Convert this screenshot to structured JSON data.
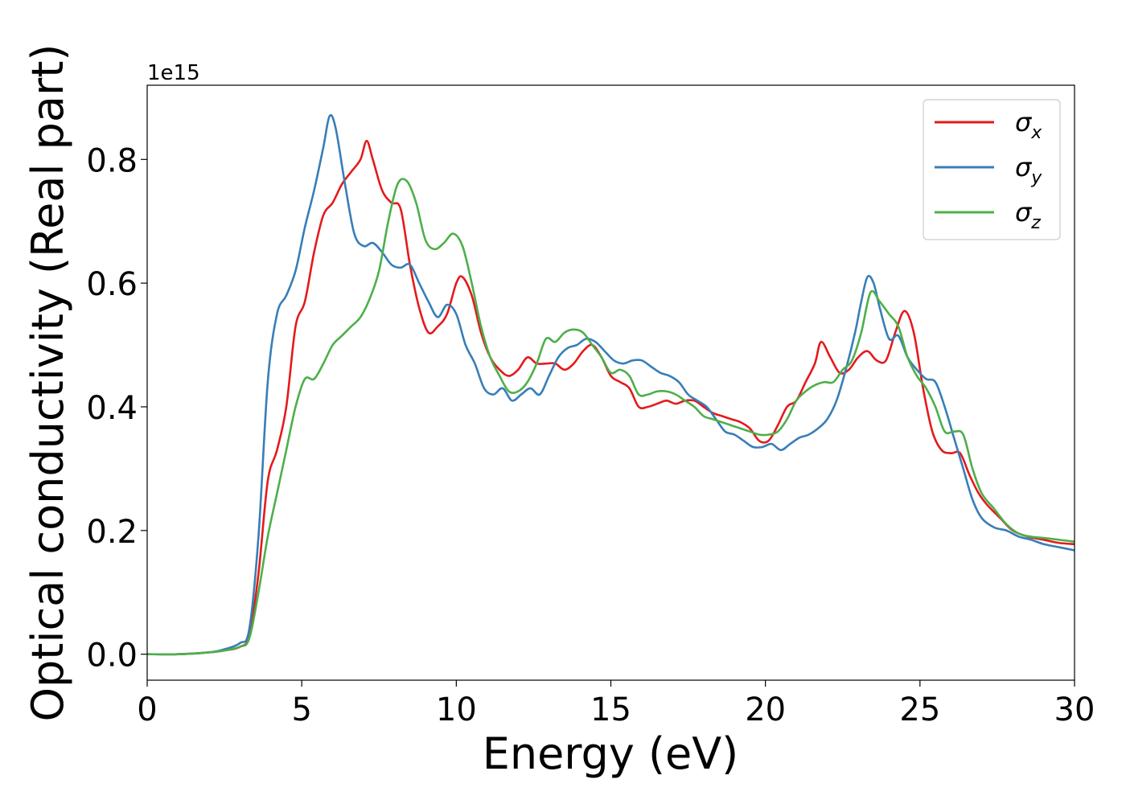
{
  "chart_data": {
    "type": "line",
    "xlabel": "Energy (eV)",
    "ylabel": "Optical conductivity (Real part)",
    "y_offset_label": "1e15",
    "xlim": [
      0,
      30
    ],
    "ylim": [
      -0.042,
      0.92
    ],
    "x_ticks": [
      0,
      5,
      10,
      15,
      20,
      25,
      30
    ],
    "x_tick_labels": [
      "0",
      "5",
      "10",
      "15",
      "20",
      "25",
      "30"
    ],
    "y_ticks": [
      0.0,
      0.2,
      0.4,
      0.6,
      0.8
    ],
    "y_tick_labels": [
      "0.0",
      "0.2",
      "0.4",
      "0.6",
      "0.8"
    ],
    "grid": false,
    "legend_position": "top-right",
    "series": [
      {
        "name": "σx",
        "symbol": "σ",
        "subscript": "x",
        "color": "#e41a1c",
        "x": [
          0,
          1,
          2,
          2.5,
          3,
          3.3,
          3.6,
          3.9,
          4.2,
          4.5,
          4.8,
          5.1,
          5.4,
          5.7,
          6.0,
          6.3,
          6.6,
          6.9,
          7.1,
          7.3,
          7.6,
          7.9,
          8.2,
          8.5,
          8.8,
          9.1,
          9.4,
          9.7,
          10.0,
          10.2,
          10.5,
          10.8,
          11.1,
          11.4,
          11.7,
          12.0,
          12.3,
          12.6,
          12.9,
          13.2,
          13.5,
          13.8,
          14.1,
          14.4,
          14.7,
          15.0,
          15.3,
          15.6,
          15.9,
          16.2,
          16.5,
          16.8,
          17.1,
          17.4,
          17.7,
          18.0,
          18.3,
          18.6,
          18.9,
          19.2,
          19.5,
          19.8,
          20.1,
          20.4,
          20.7,
          21.0,
          21.3,
          21.6,
          21.8,
          22.1,
          22.4,
          22.7,
          23.0,
          23.3,
          23.6,
          23.9,
          24.2,
          24.5,
          24.8,
          25.1,
          25.4,
          25.7,
          26.0,
          26.3,
          26.6,
          26.9,
          27.2,
          27.6,
          28.0,
          28.5,
          29.0,
          29.5,
          30.0
        ],
        "y": [
          0.0,
          0.0,
          0.003,
          0.006,
          0.012,
          0.03,
          0.13,
          0.28,
          0.33,
          0.4,
          0.53,
          0.57,
          0.65,
          0.71,
          0.73,
          0.76,
          0.78,
          0.8,
          0.83,
          0.8,
          0.75,
          0.73,
          0.72,
          0.63,
          0.56,
          0.52,
          0.53,
          0.55,
          0.6,
          0.61,
          0.58,
          0.52,
          0.48,
          0.46,
          0.45,
          0.46,
          0.48,
          0.47,
          0.47,
          0.47,
          0.46,
          0.47,
          0.49,
          0.5,
          0.48,
          0.45,
          0.44,
          0.43,
          0.4,
          0.4,
          0.405,
          0.41,
          0.405,
          0.41,
          0.41,
          0.4,
          0.39,
          0.385,
          0.38,
          0.375,
          0.365,
          0.345,
          0.345,
          0.37,
          0.4,
          0.41,
          0.44,
          0.47,
          0.505,
          0.48,
          0.455,
          0.46,
          0.48,
          0.49,
          0.475,
          0.475,
          0.52,
          0.555,
          0.52,
          0.43,
          0.36,
          0.33,
          0.325,
          0.325,
          0.29,
          0.26,
          0.24,
          0.22,
          0.2,
          0.19,
          0.185,
          0.18,
          0.178
        ]
      },
      {
        "name": "σy",
        "symbol": "σ",
        "subscript": "y",
        "color": "#377eb8",
        "x": [
          0,
          1,
          2,
          2.5,
          3,
          3.3,
          3.6,
          3.9,
          4.2,
          4.5,
          4.8,
          5.1,
          5.4,
          5.7,
          5.9,
          6.1,
          6.4,
          6.7,
          7.0,
          7.3,
          7.6,
          7.9,
          8.2,
          8.5,
          8.8,
          9.1,
          9.4,
          9.7,
          10.0,
          10.3,
          10.6,
          10.9,
          11.2,
          11.5,
          11.8,
          12.1,
          12.4,
          12.7,
          13.0,
          13.3,
          13.6,
          13.9,
          14.2,
          14.5,
          14.8,
          15.1,
          15.4,
          15.7,
          16.0,
          16.3,
          16.6,
          16.9,
          17.2,
          17.5,
          17.8,
          18.1,
          18.4,
          18.7,
          19.0,
          19.3,
          19.6,
          19.9,
          20.2,
          20.5,
          20.8,
          21.1,
          21.4,
          21.7,
          22.0,
          22.3,
          22.6,
          22.9,
          23.1,
          23.3,
          23.5,
          23.7,
          24.0,
          24.3,
          24.6,
          24.9,
          25.2,
          25.5,
          25.8,
          26.1,
          26.4,
          26.7,
          27.0,
          27.4,
          27.8,
          28.2,
          28.6,
          29.0,
          29.5,
          30.0
        ],
        "y": [
          0.0,
          0.0,
          0.003,
          0.008,
          0.018,
          0.04,
          0.19,
          0.44,
          0.55,
          0.58,
          0.62,
          0.69,
          0.75,
          0.82,
          0.87,
          0.85,
          0.76,
          0.68,
          0.66,
          0.665,
          0.65,
          0.63,
          0.625,
          0.63,
          0.6,
          0.57,
          0.545,
          0.565,
          0.55,
          0.5,
          0.47,
          0.43,
          0.42,
          0.43,
          0.41,
          0.42,
          0.43,
          0.42,
          0.45,
          0.48,
          0.495,
          0.5,
          0.51,
          0.505,
          0.49,
          0.475,
          0.47,
          0.475,
          0.475,
          0.465,
          0.455,
          0.45,
          0.44,
          0.42,
          0.41,
          0.4,
          0.38,
          0.36,
          0.355,
          0.345,
          0.335,
          0.335,
          0.34,
          0.33,
          0.34,
          0.35,
          0.355,
          0.365,
          0.38,
          0.41,
          0.46,
          0.52,
          0.57,
          0.61,
          0.6,
          0.56,
          0.51,
          0.515,
          0.48,
          0.46,
          0.445,
          0.44,
          0.4,
          0.35,
          0.3,
          0.25,
          0.22,
          0.205,
          0.2,
          0.19,
          0.185,
          0.178,
          0.173,
          0.168
        ]
      },
      {
        "name": "σz",
        "symbol": "σ",
        "subscript": "z",
        "color": "#4daf4a",
        "x": [
          0,
          1,
          2,
          2.5,
          3,
          3.3,
          3.6,
          3.9,
          4.2,
          4.5,
          4.8,
          5.1,
          5.4,
          5.7,
          6.0,
          6.3,
          6.6,
          6.9,
          7.2,
          7.5,
          7.8,
          8.1,
          8.4,
          8.7,
          9.0,
          9.3,
          9.6,
          9.9,
          10.2,
          10.5,
          10.8,
          11.1,
          11.4,
          11.7,
          12.0,
          12.3,
          12.6,
          12.9,
          13.2,
          13.5,
          13.8,
          14.1,
          14.4,
          14.7,
          15.0,
          15.3,
          15.6,
          15.9,
          16.2,
          16.5,
          16.8,
          17.1,
          17.4,
          17.7,
          18.0,
          18.3,
          18.6,
          18.9,
          19.2,
          19.5,
          19.8,
          20.1,
          20.4,
          20.7,
          21.0,
          21.3,
          21.6,
          21.9,
          22.2,
          22.5,
          22.8,
          23.1,
          23.4,
          23.7,
          24.0,
          24.3,
          24.6,
          24.9,
          25.2,
          25.5,
          25.8,
          26.1,
          26.4,
          26.7,
          27.0,
          27.4,
          27.8,
          28.2,
          28.6,
          29.0,
          29.5,
          30.0
        ],
        "y": [
          0.0,
          0.0,
          0.003,
          0.006,
          0.012,
          0.025,
          0.1,
          0.19,
          0.26,
          0.33,
          0.4,
          0.445,
          0.445,
          0.47,
          0.5,
          0.515,
          0.53,
          0.545,
          0.575,
          0.62,
          0.7,
          0.76,
          0.765,
          0.73,
          0.67,
          0.655,
          0.665,
          0.68,
          0.66,
          0.6,
          0.53,
          0.48,
          0.45,
          0.425,
          0.425,
          0.44,
          0.47,
          0.51,
          0.505,
          0.52,
          0.525,
          0.52,
          0.5,
          0.48,
          0.455,
          0.46,
          0.45,
          0.42,
          0.42,
          0.425,
          0.425,
          0.42,
          0.41,
          0.4,
          0.385,
          0.38,
          0.375,
          0.37,
          0.365,
          0.36,
          0.355,
          0.355,
          0.36,
          0.38,
          0.41,
          0.425,
          0.435,
          0.44,
          0.44,
          0.46,
          0.475,
          0.52,
          0.585,
          0.57,
          0.55,
          0.53,
          0.48,
          0.45,
          0.43,
          0.4,
          0.36,
          0.36,
          0.355,
          0.3,
          0.26,
          0.235,
          0.21,
          0.195,
          0.19,
          0.188,
          0.185,
          0.182
        ]
      }
    ]
  }
}
